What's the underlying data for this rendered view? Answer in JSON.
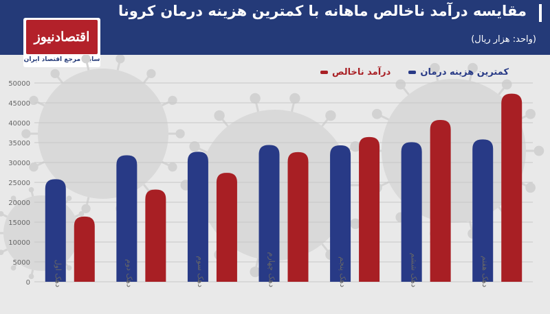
{
  "header": {
    "title": "مقایسه درآمد ناخالص ماهانه با کمترین هزینه درمان کرونا",
    "subtitle": "(واحد: هزار ریال)",
    "logo_text": "اقتصادنیوز",
    "logo_tagline": "سایت مرجع اقتصاد ایران"
  },
  "colors": {
    "header_bg": "#243a78",
    "series_cost": "#283a86",
    "series_income": "#a81f24",
    "grid": "#c8c8c8",
    "tick_text": "#666666"
  },
  "chart_data": {
    "type": "bar",
    "title": "مقایسه درآمد ناخالص ماهانه با کمترین هزینه درمان کرونا",
    "ylabel": "",
    "xlabel": "",
    "ylim": [
      0,
      50000
    ],
    "yticks": [
      0,
      5000,
      10000,
      15000,
      20000,
      25000,
      30000,
      35000,
      40000,
      45000,
      50000
    ],
    "ytick_labels": [
      "0",
      "5000",
      "10000",
      "15000",
      "20000",
      "25000",
      "30000",
      "35000",
      "40000",
      "45000",
      "50000"
    ],
    "categories": [
      "دهک اول",
      "دهک دوم",
      "دهک سوم",
      "دهک چهارم",
      "دهک پنجم",
      "دهک ششم",
      "دهک هفتم"
    ],
    "grid": true,
    "legend_position": "top-right",
    "series": [
      {
        "name": "کمترین هزینه درمان",
        "color": "#283a86",
        "values": [
          25800,
          31800,
          32700,
          34400,
          34300,
          35100,
          35800
        ]
      },
      {
        "name": "درآمد ناخالص",
        "color": "#a81f24",
        "values": [
          16400,
          23200,
          27400,
          32600,
          36400,
          40700,
          47300
        ]
      }
    ]
  }
}
